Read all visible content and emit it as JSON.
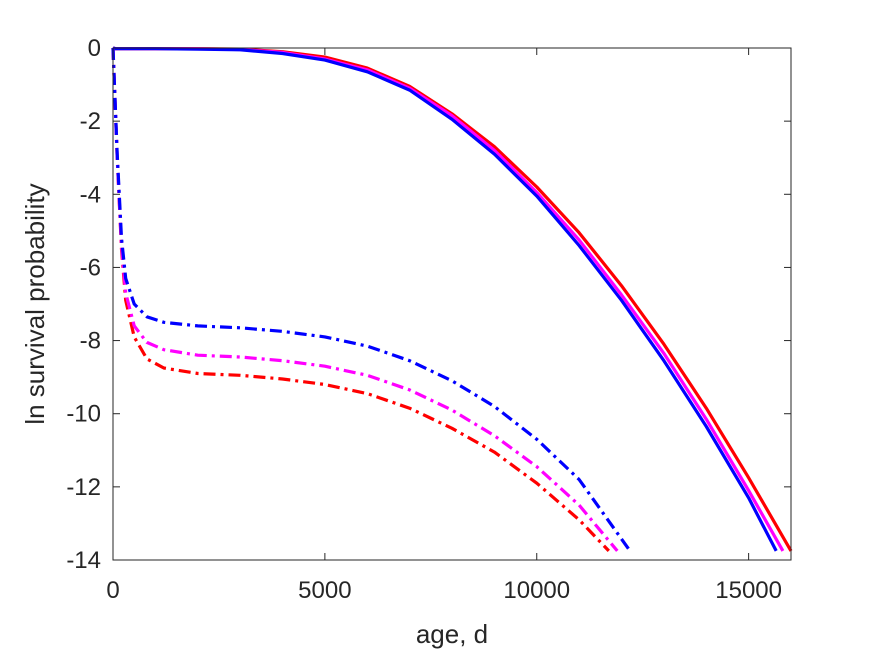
{
  "chart_data": {
    "type": "line",
    "title": "",
    "xlabel": "age, d",
    "ylabel": "ln survival probability",
    "xlim": [
      0,
      16000
    ],
    "ylim": [
      -14,
      0
    ],
    "xticks": [
      0,
      5000,
      10000,
      15000
    ],
    "xtick_labels": [
      "0",
      "5000",
      "10000",
      "15000"
    ],
    "yticks": [
      0,
      -2,
      -4,
      -6,
      -8,
      -10,
      -12,
      -14
    ],
    "ytick_labels": [
      "0",
      "-2",
      "-4",
      "-6",
      "-8",
      "-10",
      "-12",
      "-14"
    ],
    "grid": false,
    "legend": "none",
    "series": [
      {
        "color": "#ff0000",
        "style": "solid",
        "x": [
          0,
          60,
          1000,
          2000,
          3000,
          4000,
          5000,
          6000,
          7000,
          8000,
          9000,
          10000,
          11000,
          12000,
          13000,
          14000,
          15000,
          16000
        ],
        "y": [
          0,
          -0.02,
          -0.02,
          -0.02,
          -0.03,
          -0.1,
          -0.25,
          -0.55,
          -1.05,
          -1.8,
          -2.7,
          -3.8,
          -5.05,
          -6.5,
          -8.1,
          -9.85,
          -11.75,
          -13.75
        ]
      },
      {
        "color": "#ff00ff",
        "style": "solid",
        "x": [
          0,
          60,
          1000,
          2000,
          3000,
          4000,
          5000,
          6000,
          7000,
          8000,
          9000,
          10000,
          11000,
          12000,
          13000,
          14000,
          15000,
          15810
        ],
        "y": [
          0,
          -0.02,
          -0.02,
          -0.02,
          -0.04,
          -0.12,
          -0.3,
          -0.6,
          -1.1,
          -1.85,
          -2.8,
          -3.95,
          -5.25,
          -6.75,
          -8.35,
          -10.15,
          -12.1,
          -13.75
        ]
      },
      {
        "color": "#0000ff",
        "style": "solid",
        "x": [
          0,
          60,
          1000,
          2000,
          3000,
          4000,
          5000,
          6000,
          7000,
          8000,
          9000,
          10000,
          11000,
          12000,
          13000,
          14000,
          15000,
          15650
        ],
        "y": [
          0,
          -0.02,
          -0.02,
          -0.03,
          -0.05,
          -0.15,
          -0.33,
          -0.65,
          -1.15,
          -1.95,
          -2.9,
          -4.05,
          -5.4,
          -6.9,
          -8.55,
          -10.35,
          -12.3,
          -13.75
        ]
      },
      {
        "color": "#ff0000",
        "style": "dashdot",
        "x": [
          0,
          100,
          200,
          300,
          500,
          800,
          1200,
          2000,
          3000,
          4000,
          5000,
          6000,
          7000,
          8000,
          9000,
          10000,
          11000,
          11700
        ],
        "y": [
          0,
          -3.0,
          -5.5,
          -6.9,
          -7.9,
          -8.5,
          -8.75,
          -8.9,
          -8.95,
          -9.05,
          -9.2,
          -9.45,
          -9.85,
          -10.4,
          -11.05,
          -11.9,
          -12.9,
          -13.75
        ]
      },
      {
        "color": "#ff00ff",
        "style": "dashdot",
        "x": [
          0,
          100,
          200,
          300,
          500,
          800,
          1200,
          2000,
          3000,
          4000,
          5000,
          6000,
          7000,
          8000,
          9000,
          10000,
          11000,
          11900
        ],
        "y": [
          0,
          -3.0,
          -5.4,
          -6.7,
          -7.6,
          -8.05,
          -8.25,
          -8.4,
          -8.45,
          -8.55,
          -8.7,
          -8.95,
          -9.35,
          -9.9,
          -10.6,
          -11.45,
          -12.5,
          -13.75
        ]
      },
      {
        "color": "#0000ff",
        "style": "dashdot",
        "x": [
          0,
          100,
          200,
          300,
          500,
          800,
          1200,
          2000,
          3000,
          4000,
          5000,
          6000,
          7000,
          8000,
          9000,
          10000,
          11000,
          12200
        ],
        "y": [
          0,
          -2.9,
          -5.2,
          -6.3,
          -7.0,
          -7.35,
          -7.5,
          -7.6,
          -7.65,
          -7.75,
          -7.9,
          -8.15,
          -8.55,
          -9.1,
          -9.8,
          -10.7,
          -11.8,
          -13.75
        ]
      }
    ]
  }
}
